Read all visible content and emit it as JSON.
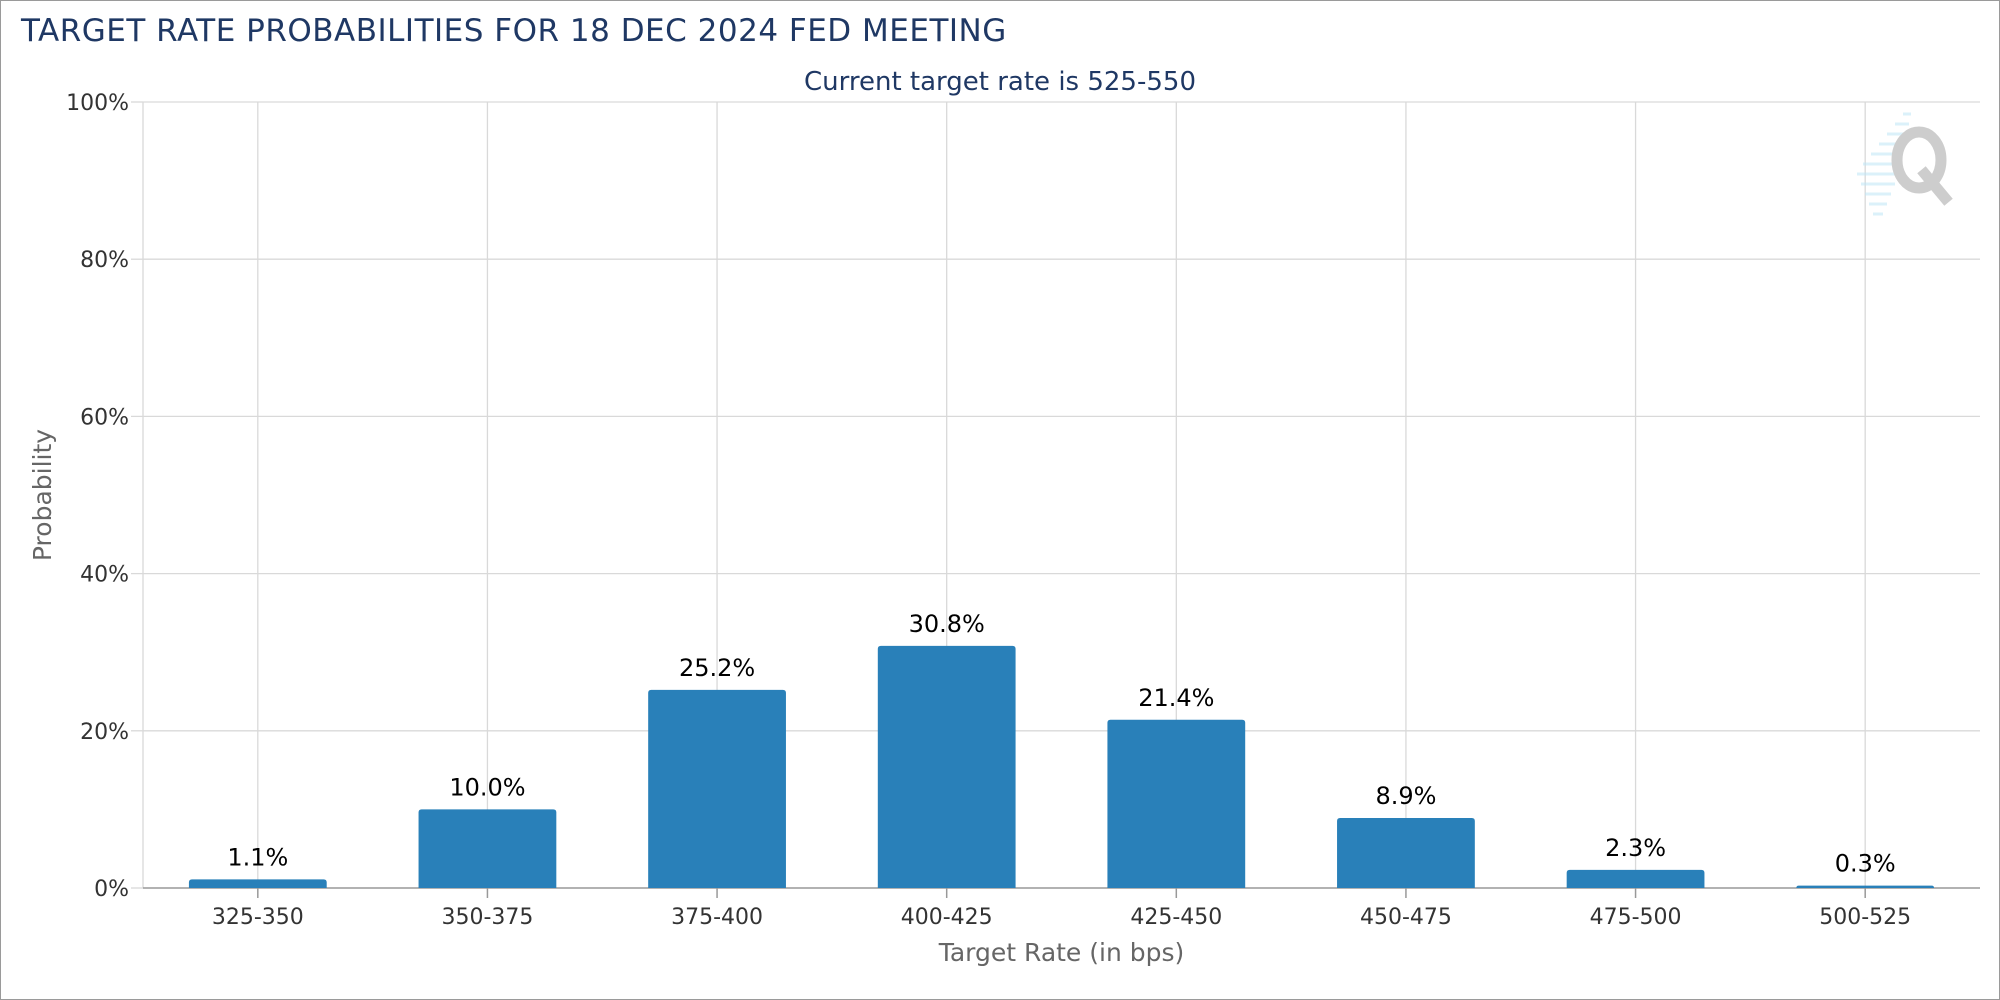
{
  "page": {
    "title": "TARGET RATE PROBABILITIES FOR 18 DEC 2024 FED MEETING"
  },
  "chart_data": {
    "type": "bar",
    "title": "TARGET RATE PROBABILITIES FOR 18 DEC 2024 FED MEETING",
    "subtitle": "Current target rate is 525-550",
    "xlabel": "Target Rate (in bps)",
    "ylabel": "Probability",
    "categories": [
      "325-350",
      "350-375",
      "375-400",
      "400-425",
      "425-450",
      "450-475",
      "475-500",
      "500-525"
    ],
    "values": [
      1.1,
      10.0,
      25.2,
      30.8,
      21.4,
      8.9,
      2.3,
      0.3
    ],
    "data_labels": [
      "1.1%",
      "10.0%",
      "25.2%",
      "30.8%",
      "21.4%",
      "8.9%",
      "2.3%",
      "0.3%"
    ],
    "ylim": [
      0,
      100
    ],
    "yticks": [
      0,
      20,
      40,
      60,
      80,
      100
    ],
    "ytick_labels": [
      "0%",
      "20%",
      "40%",
      "60%",
      "80%",
      "100%"
    ],
    "grid": true,
    "legend": "none",
    "bar_color": "#2980b9"
  }
}
